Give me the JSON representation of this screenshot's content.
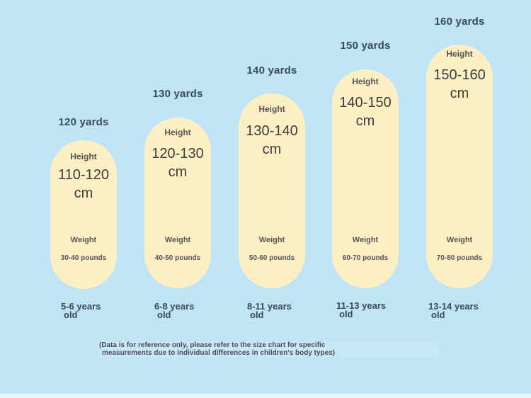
{
  "chart_data": {
    "type": "table",
    "columns": [
      {
        "size": "120 yards",
        "height_label": "Height",
        "height": "110-120\ncm",
        "weight_label": "Weight",
        "weight": "30-40 pounds",
        "age_line1": "5-6 years",
        "age_line2": "old"
      },
      {
        "size": "130 yards",
        "height_label": "Height",
        "height": "120-130\ncm",
        "weight_label": "Weight",
        "weight": "40-50 pounds",
        "age_line1": "6-8 years",
        "age_line2": "old"
      },
      {
        "size": "140 yards",
        "height_label": "Height",
        "height": "130-140\ncm",
        "weight_label": "Weight",
        "weight": "50-60 pounds",
        "age_line1": "8-11 years",
        "age_line2": "old"
      },
      {
        "size": "150 yards",
        "height_label": "Height",
        "height": "140-150\ncm",
        "weight_label": "Weight",
        "weight": "60-70 pounds",
        "age_line1": "11-13 years",
        "age_line2": "old"
      },
      {
        "size": "160 yards",
        "height_label": "Height",
        "height": "150-160\ncm",
        "weight_label": "Weight",
        "weight": "70-80 pounds",
        "age_line1": "13-14 years",
        "age_line2": "old"
      }
    ],
    "note_line1": "(Data is for reference only, please refer to the size chart for specific",
    "note_line2": "measurements due to individual differences in children's body types)"
  },
  "colors": {
    "background": "#bfe4f6",
    "pill": "#fdefc4",
    "text": "#3b4a5a"
  }
}
